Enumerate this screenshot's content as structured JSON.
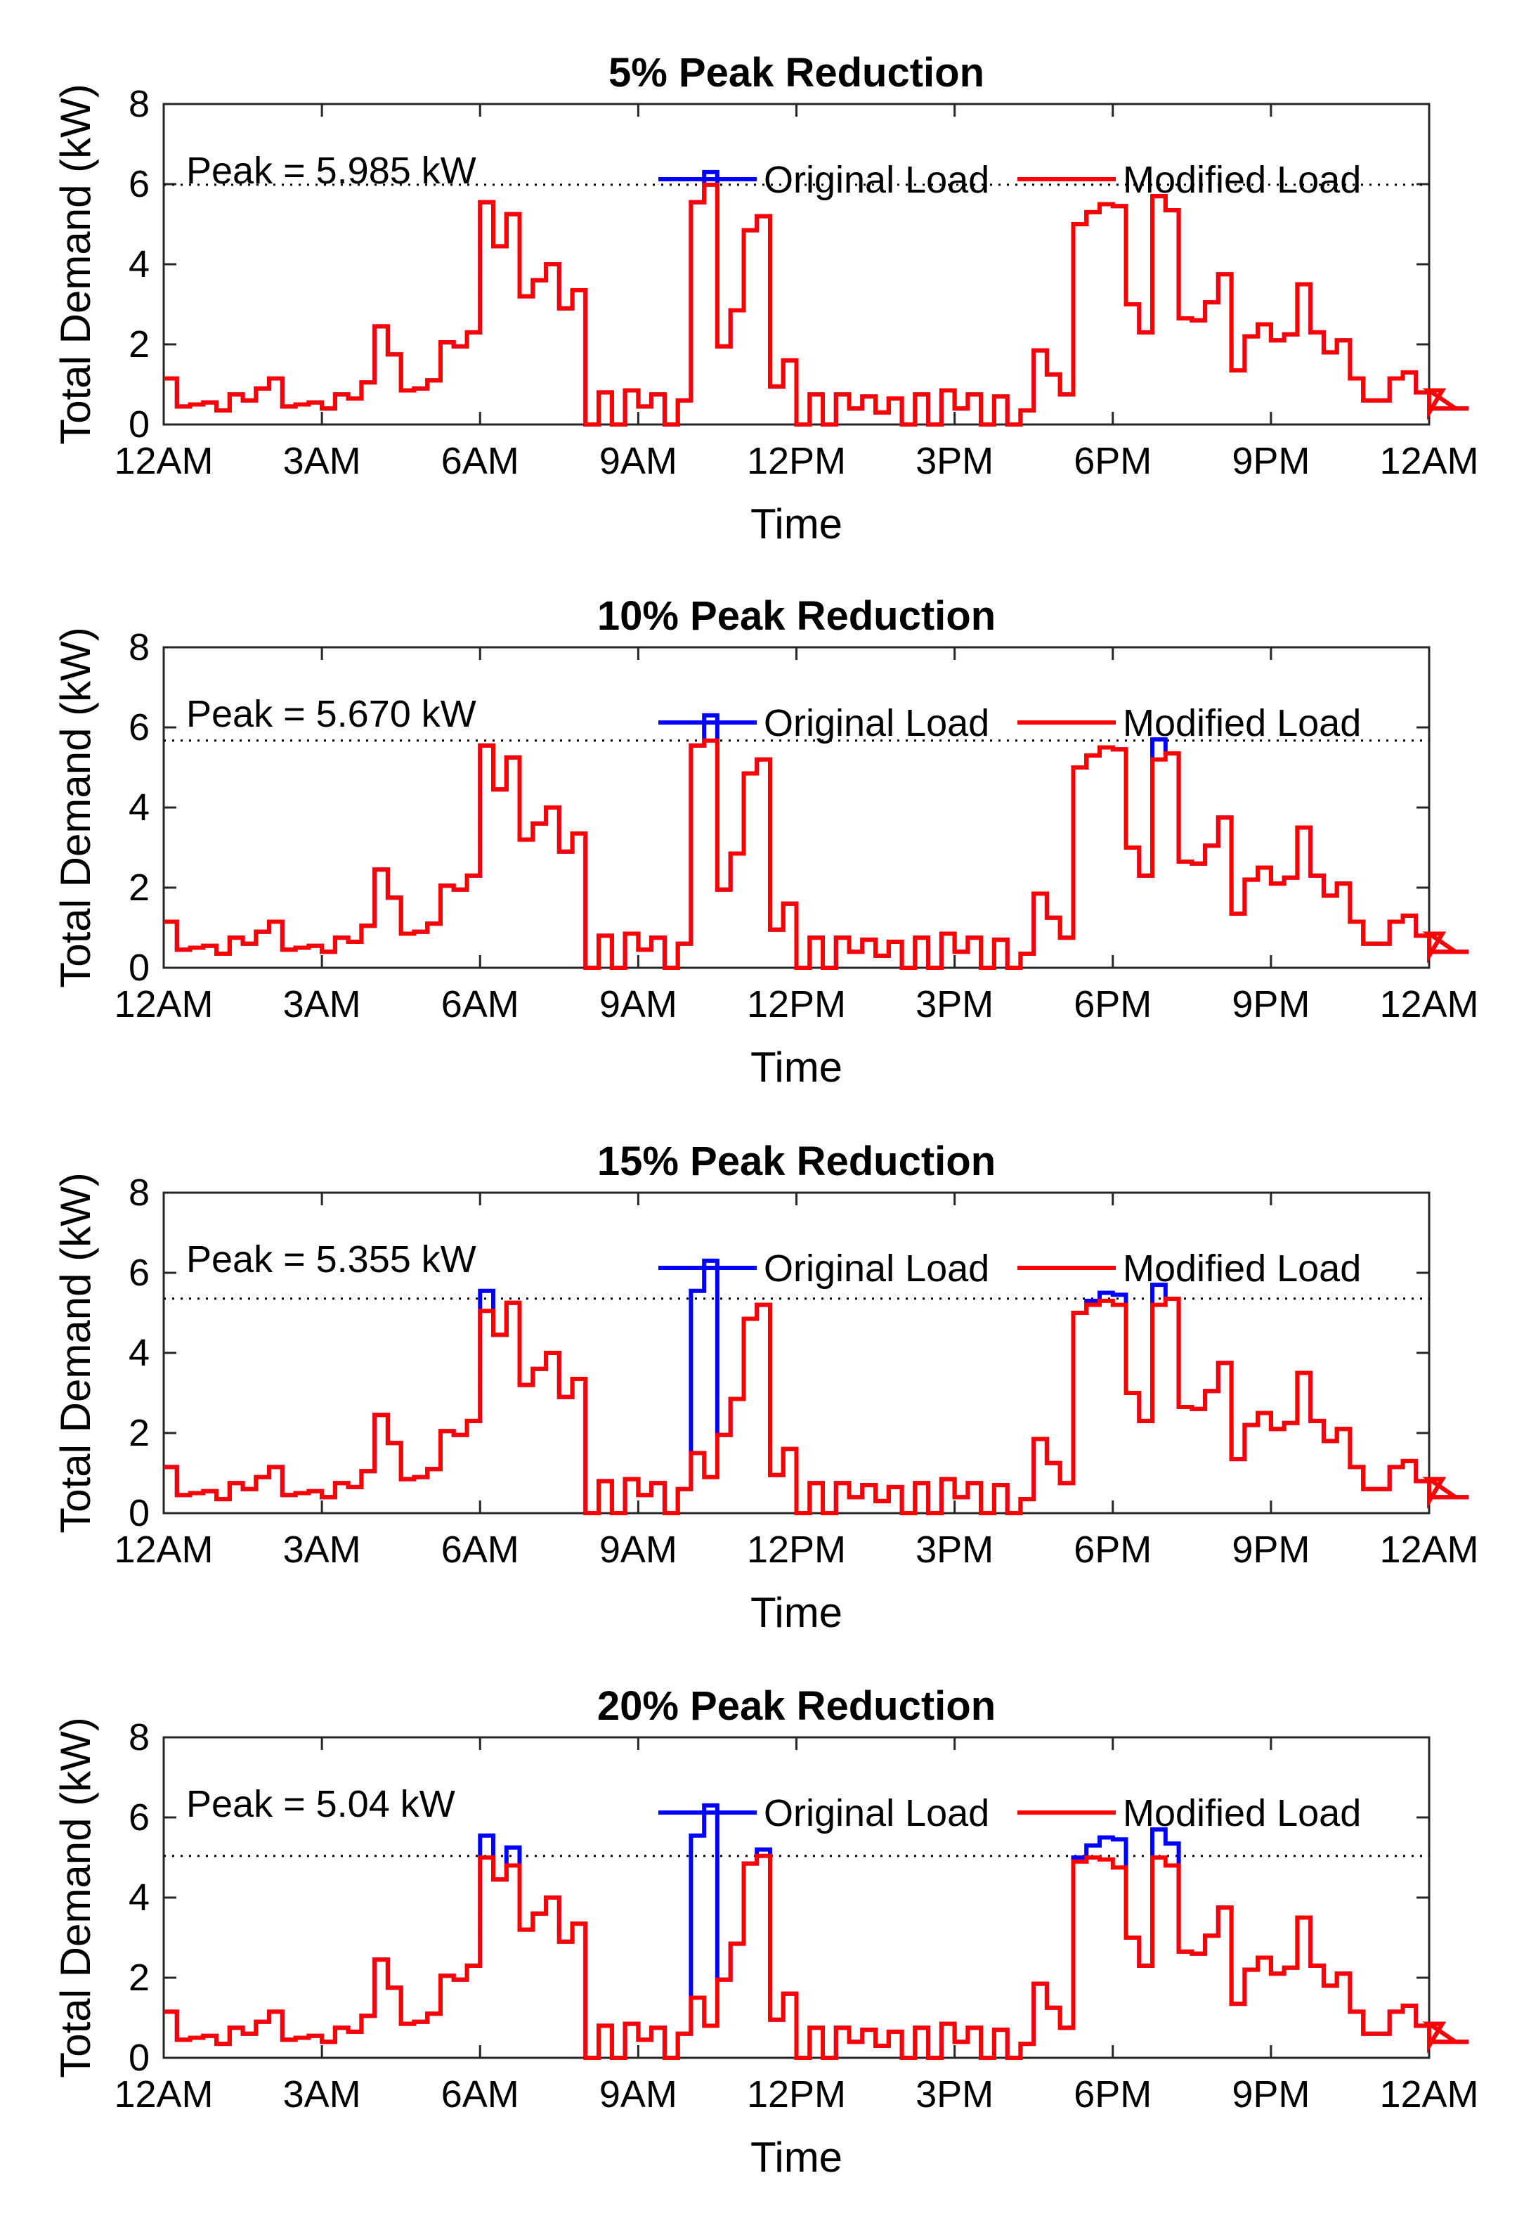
{
  "chart_data": [
    {
      "type": "line",
      "title": "5% Peak Reduction",
      "xlabel": "Time",
      "ylabel": "Total Demand (kW)",
      "xticks": [
        "12AM",
        "3AM",
        "6AM",
        "9AM",
        "12PM",
        "3PM",
        "6PM",
        "9PM",
        "12AM"
      ],
      "yticks": [
        "0",
        "2",
        "4",
        "6",
        "8"
      ],
      "xlim": [
        0,
        24
      ],
      "ylim": [
        0,
        8
      ],
      "step_hours": 0.25,
      "peak_limit": 5.985,
      "annotation": "Peak = 5.985 kW",
      "legend": [
        "Original Load",
        "Modified Load"
      ],
      "series": [
        {
          "name": "Original Load",
          "color": "#0000ff",
          "values": [
            1.15,
            0.45,
            0.5,
            0.55,
            0.35,
            0.75,
            0.6,
            0.9,
            1.15,
            0.45,
            0.5,
            0.55,
            0.4,
            0.75,
            0.65,
            1.05,
            2.45,
            1.75,
            0.85,
            0.9,
            1.1,
            2.05,
            1.95,
            2.3,
            5.55,
            4.45,
            5.25,
            3.2,
            3.6,
            4.0,
            2.9,
            3.35,
            0.0,
            0.8,
            0.0,
            0.85,
            0.45,
            0.75,
            0.0,
            0.6,
            5.55,
            6.3,
            1.95,
            2.85,
            4.85,
            5.2,
            0.95,
            1.6,
            0.0,
            0.75,
            0.0,
            0.75,
            0.4,
            0.7,
            0.3,
            0.65,
            0.0,
            0.75,
            0.0,
            0.85,
            0.4,
            0.75,
            0.0,
            0.7,
            0.0,
            0.35,
            1.85,
            1.25,
            0.75,
            5.0,
            5.3,
            5.5,
            5.45,
            3.0,
            2.3,
            5.7,
            5.35,
            2.65,
            2.6,
            3.05,
            3.75,
            1.35,
            2.2,
            2.5,
            2.1,
            2.25,
            3.5,
            2.3,
            1.8,
            2.1,
            1.15,
            0.6,
            0.6,
            1.15,
            1.3,
            0.8,
            0.3,
            0.85,
            0.4,
            0.4
          ]
        },
        {
          "name": "Modified Load",
          "color": "#ff0000",
          "values": [
            1.15,
            0.45,
            0.5,
            0.55,
            0.35,
            0.75,
            0.6,
            0.9,
            1.15,
            0.45,
            0.5,
            0.55,
            0.4,
            0.75,
            0.65,
            1.05,
            2.45,
            1.75,
            0.85,
            0.9,
            1.1,
            2.05,
            1.95,
            2.3,
            5.55,
            4.45,
            5.25,
            3.2,
            3.6,
            4.0,
            2.9,
            3.35,
            0.0,
            0.8,
            0.0,
            0.85,
            0.45,
            0.75,
            0.0,
            0.6,
            5.55,
            5.985,
            1.95,
            2.85,
            4.85,
            5.2,
            0.95,
            1.6,
            0.0,
            0.75,
            0.0,
            0.75,
            0.4,
            0.7,
            0.3,
            0.65,
            0.0,
            0.75,
            0.0,
            0.85,
            0.4,
            0.75,
            0.0,
            0.7,
            0.0,
            0.35,
            1.85,
            1.25,
            0.75,
            5.0,
            5.3,
            5.5,
            5.45,
            3.0,
            2.3,
            5.7,
            5.35,
            2.65,
            2.6,
            3.05,
            3.75,
            1.35,
            2.2,
            2.5,
            2.1,
            2.25,
            3.5,
            2.3,
            1.8,
            2.1,
            1.15,
            0.6,
            0.6,
            1.15,
            1.3,
            0.8,
            0.3,
            0.85,
            0.4,
            0.4
          ]
        }
      ]
    },
    {
      "type": "line",
      "title": "10% Peak Reduction",
      "xlabel": "Time",
      "ylabel": "Total Demand (kW)",
      "xticks": [
        "12AM",
        "3AM",
        "6AM",
        "9AM",
        "12PM",
        "3PM",
        "6PM",
        "9PM",
        "12AM"
      ],
      "yticks": [
        "0",
        "2",
        "4",
        "6",
        "8"
      ],
      "xlim": [
        0,
        24
      ],
      "ylim": [
        0,
        8
      ],
      "step_hours": 0.25,
      "peak_limit": 5.67,
      "annotation": "Peak = 5.670 kW",
      "legend": [
        "Original Load",
        "Modified Load"
      ],
      "series": [
        {
          "name": "Original Load",
          "color": "#0000ff",
          "values": [
            1.15,
            0.45,
            0.5,
            0.55,
            0.35,
            0.75,
            0.6,
            0.9,
            1.15,
            0.45,
            0.5,
            0.55,
            0.4,
            0.75,
            0.65,
            1.05,
            2.45,
            1.75,
            0.85,
            0.9,
            1.1,
            2.05,
            1.95,
            2.3,
            5.55,
            4.45,
            5.25,
            3.2,
            3.6,
            4.0,
            2.9,
            3.35,
            0.0,
            0.8,
            0.0,
            0.85,
            0.45,
            0.75,
            0.0,
            0.6,
            5.55,
            6.3,
            1.95,
            2.85,
            4.85,
            5.2,
            0.95,
            1.6,
            0.0,
            0.75,
            0.0,
            0.75,
            0.4,
            0.7,
            0.3,
            0.65,
            0.0,
            0.75,
            0.0,
            0.85,
            0.4,
            0.75,
            0.0,
            0.7,
            0.0,
            0.35,
            1.85,
            1.25,
            0.75,
            5.0,
            5.3,
            5.5,
            5.45,
            3.0,
            2.3,
            5.7,
            5.35,
            2.65,
            2.6,
            3.05,
            3.75,
            1.35,
            2.2,
            2.5,
            2.1,
            2.25,
            3.5,
            2.3,
            1.8,
            2.1,
            1.15,
            0.6,
            0.6,
            1.15,
            1.3,
            0.8,
            0.3,
            0.85,
            0.4,
            0.4
          ]
        },
        {
          "name": "Modified Load",
          "color": "#ff0000",
          "values": [
            1.15,
            0.45,
            0.5,
            0.55,
            0.35,
            0.75,
            0.6,
            0.9,
            1.15,
            0.45,
            0.5,
            0.55,
            0.4,
            0.75,
            0.65,
            1.05,
            2.45,
            1.75,
            0.85,
            0.9,
            1.1,
            2.05,
            1.95,
            2.3,
            5.55,
            4.45,
            5.25,
            3.2,
            3.6,
            4.0,
            2.9,
            3.35,
            0.0,
            0.8,
            0.0,
            0.85,
            0.45,
            0.75,
            0.0,
            0.6,
            5.55,
            5.67,
            1.95,
            2.85,
            4.85,
            5.2,
            0.95,
            1.6,
            0.0,
            0.75,
            0.0,
            0.75,
            0.4,
            0.7,
            0.3,
            0.65,
            0.0,
            0.75,
            0.0,
            0.85,
            0.4,
            0.75,
            0.0,
            0.7,
            0.0,
            0.35,
            1.85,
            1.25,
            0.75,
            5.0,
            5.3,
            5.5,
            5.45,
            3.0,
            2.3,
            5.2,
            5.35,
            2.65,
            2.6,
            3.05,
            3.75,
            1.35,
            2.2,
            2.5,
            2.1,
            2.25,
            3.5,
            2.3,
            1.8,
            2.1,
            1.15,
            0.6,
            0.6,
            1.15,
            1.3,
            0.8,
            0.3,
            0.85,
            0.4,
            0.4
          ]
        }
      ]
    },
    {
      "type": "line",
      "title": "15% Peak Reduction",
      "xlabel": "Time",
      "ylabel": "Total Demand (kW)",
      "xticks": [
        "12AM",
        "3AM",
        "6AM",
        "9AM",
        "12PM",
        "3PM",
        "6PM",
        "9PM",
        "12AM"
      ],
      "yticks": [
        "0",
        "2",
        "4",
        "6",
        "8"
      ],
      "xlim": [
        0,
        24
      ],
      "ylim": [
        0,
        8
      ],
      "step_hours": 0.25,
      "peak_limit": 5.355,
      "annotation": "Peak = 5.355 kW",
      "legend": [
        "Original Load",
        "Modified Load"
      ],
      "series": [
        {
          "name": "Original Load",
          "color": "#0000ff",
          "values": [
            1.15,
            0.45,
            0.5,
            0.55,
            0.35,
            0.75,
            0.6,
            0.9,
            1.15,
            0.45,
            0.5,
            0.55,
            0.4,
            0.75,
            0.65,
            1.05,
            2.45,
            1.75,
            0.85,
            0.9,
            1.1,
            2.05,
            1.95,
            2.3,
            5.55,
            4.45,
            5.25,
            3.2,
            3.6,
            4.0,
            2.9,
            3.35,
            0.0,
            0.8,
            0.0,
            0.85,
            0.45,
            0.75,
            0.0,
            0.6,
            5.55,
            6.3,
            1.95,
            2.85,
            4.85,
            5.2,
            0.95,
            1.6,
            0.0,
            0.75,
            0.0,
            0.75,
            0.4,
            0.7,
            0.3,
            0.65,
            0.0,
            0.75,
            0.0,
            0.85,
            0.4,
            0.75,
            0.0,
            0.7,
            0.0,
            0.35,
            1.85,
            1.25,
            0.75,
            5.0,
            5.3,
            5.5,
            5.45,
            3.0,
            2.3,
            5.7,
            5.35,
            2.65,
            2.6,
            3.05,
            3.75,
            1.35,
            2.2,
            2.5,
            2.1,
            2.25,
            3.5,
            2.3,
            1.8,
            2.1,
            1.15,
            0.6,
            0.6,
            1.15,
            1.3,
            0.8,
            0.3,
            0.85,
            0.4,
            0.4
          ]
        },
        {
          "name": "Modified Load",
          "color": "#ff0000",
          "values": [
            1.15,
            0.45,
            0.5,
            0.55,
            0.35,
            0.75,
            0.6,
            0.9,
            1.15,
            0.45,
            0.5,
            0.55,
            0.4,
            0.75,
            0.65,
            1.05,
            2.45,
            1.75,
            0.85,
            0.9,
            1.1,
            2.05,
            1.95,
            2.3,
            5.05,
            4.45,
            5.25,
            3.2,
            3.6,
            4.0,
            2.9,
            3.35,
            0.0,
            0.8,
            0.0,
            0.85,
            0.45,
            0.75,
            0.0,
            0.6,
            1.5,
            0.9,
            1.95,
            2.85,
            4.85,
            5.2,
            0.95,
            1.6,
            0.0,
            0.75,
            0.0,
            0.75,
            0.4,
            0.7,
            0.3,
            0.65,
            0.0,
            0.75,
            0.0,
            0.85,
            0.4,
            0.75,
            0.0,
            0.7,
            0.0,
            0.35,
            1.85,
            1.25,
            0.75,
            5.0,
            5.2,
            5.3,
            5.2,
            3.0,
            2.3,
            5.2,
            5.35,
            2.65,
            2.6,
            3.05,
            3.75,
            1.35,
            2.2,
            2.5,
            2.1,
            2.25,
            3.5,
            2.3,
            1.8,
            2.1,
            1.15,
            0.6,
            0.6,
            1.15,
            1.3,
            0.8,
            0.3,
            0.85,
            0.4,
            0.4
          ]
        }
      ]
    },
    {
      "type": "line",
      "title": "20% Peak Reduction",
      "xlabel": "Time",
      "ylabel": "Total Demand (kW)",
      "xticks": [
        "12AM",
        "3AM",
        "6AM",
        "9AM",
        "12PM",
        "3PM",
        "6PM",
        "9PM",
        "12AM"
      ],
      "yticks": [
        "0",
        "2",
        "4",
        "6",
        "8"
      ],
      "xlim": [
        0,
        24
      ],
      "ylim": [
        0,
        8
      ],
      "step_hours": 0.25,
      "peak_limit": 5.04,
      "annotation": "Peak = 5.04 kW",
      "legend": [
        "Original Load",
        "Modified Load"
      ],
      "series": [
        {
          "name": "Original Load",
          "color": "#0000ff",
          "values": [
            1.15,
            0.45,
            0.5,
            0.55,
            0.35,
            0.75,
            0.6,
            0.9,
            1.15,
            0.45,
            0.5,
            0.55,
            0.4,
            0.75,
            0.65,
            1.05,
            2.45,
            1.75,
            0.85,
            0.9,
            1.1,
            2.05,
            1.95,
            2.3,
            5.55,
            4.45,
            5.25,
            3.2,
            3.6,
            4.0,
            2.9,
            3.35,
            0.0,
            0.8,
            0.0,
            0.85,
            0.45,
            0.75,
            0.0,
            0.6,
            5.55,
            6.3,
            1.95,
            2.85,
            4.85,
            5.2,
            0.95,
            1.6,
            0.0,
            0.75,
            0.0,
            0.75,
            0.4,
            0.7,
            0.3,
            0.65,
            0.0,
            0.75,
            0.0,
            0.85,
            0.4,
            0.75,
            0.0,
            0.7,
            0.0,
            0.35,
            1.85,
            1.25,
            0.75,
            5.0,
            5.3,
            5.5,
            5.45,
            3.0,
            2.3,
            5.7,
            5.35,
            2.65,
            2.6,
            3.05,
            3.75,
            1.35,
            2.2,
            2.5,
            2.1,
            2.25,
            3.5,
            2.3,
            1.8,
            2.1,
            1.15,
            0.6,
            0.6,
            1.15,
            1.3,
            0.8,
            0.3,
            0.85,
            0.4,
            0.4
          ]
        },
        {
          "name": "Modified Load",
          "color": "#ff0000",
          "values": [
            1.15,
            0.45,
            0.5,
            0.55,
            0.35,
            0.75,
            0.6,
            0.9,
            1.15,
            0.45,
            0.5,
            0.55,
            0.4,
            0.75,
            0.65,
            1.05,
            2.45,
            1.75,
            0.85,
            0.9,
            1.1,
            2.05,
            1.95,
            2.3,
            5.0,
            4.45,
            4.8,
            3.2,
            3.6,
            4.0,
            2.9,
            3.35,
            0.0,
            0.8,
            0.0,
            0.85,
            0.45,
            0.75,
            0.0,
            0.6,
            1.5,
            0.8,
            1.95,
            2.85,
            4.85,
            5.04,
            0.95,
            1.6,
            0.0,
            0.75,
            0.0,
            0.75,
            0.4,
            0.7,
            0.3,
            0.65,
            0.0,
            0.75,
            0.0,
            0.85,
            0.4,
            0.75,
            0.0,
            0.7,
            0.0,
            0.35,
            1.85,
            1.25,
            0.75,
            4.9,
            5.0,
            4.95,
            4.75,
            3.0,
            2.3,
            5.0,
            4.8,
            2.65,
            2.6,
            3.05,
            3.75,
            1.35,
            2.2,
            2.5,
            2.1,
            2.25,
            3.5,
            2.3,
            1.8,
            2.1,
            1.15,
            0.6,
            0.6,
            1.15,
            1.3,
            0.8,
            0.3,
            0.85,
            0.4,
            0.4
          ]
        }
      ]
    }
  ]
}
